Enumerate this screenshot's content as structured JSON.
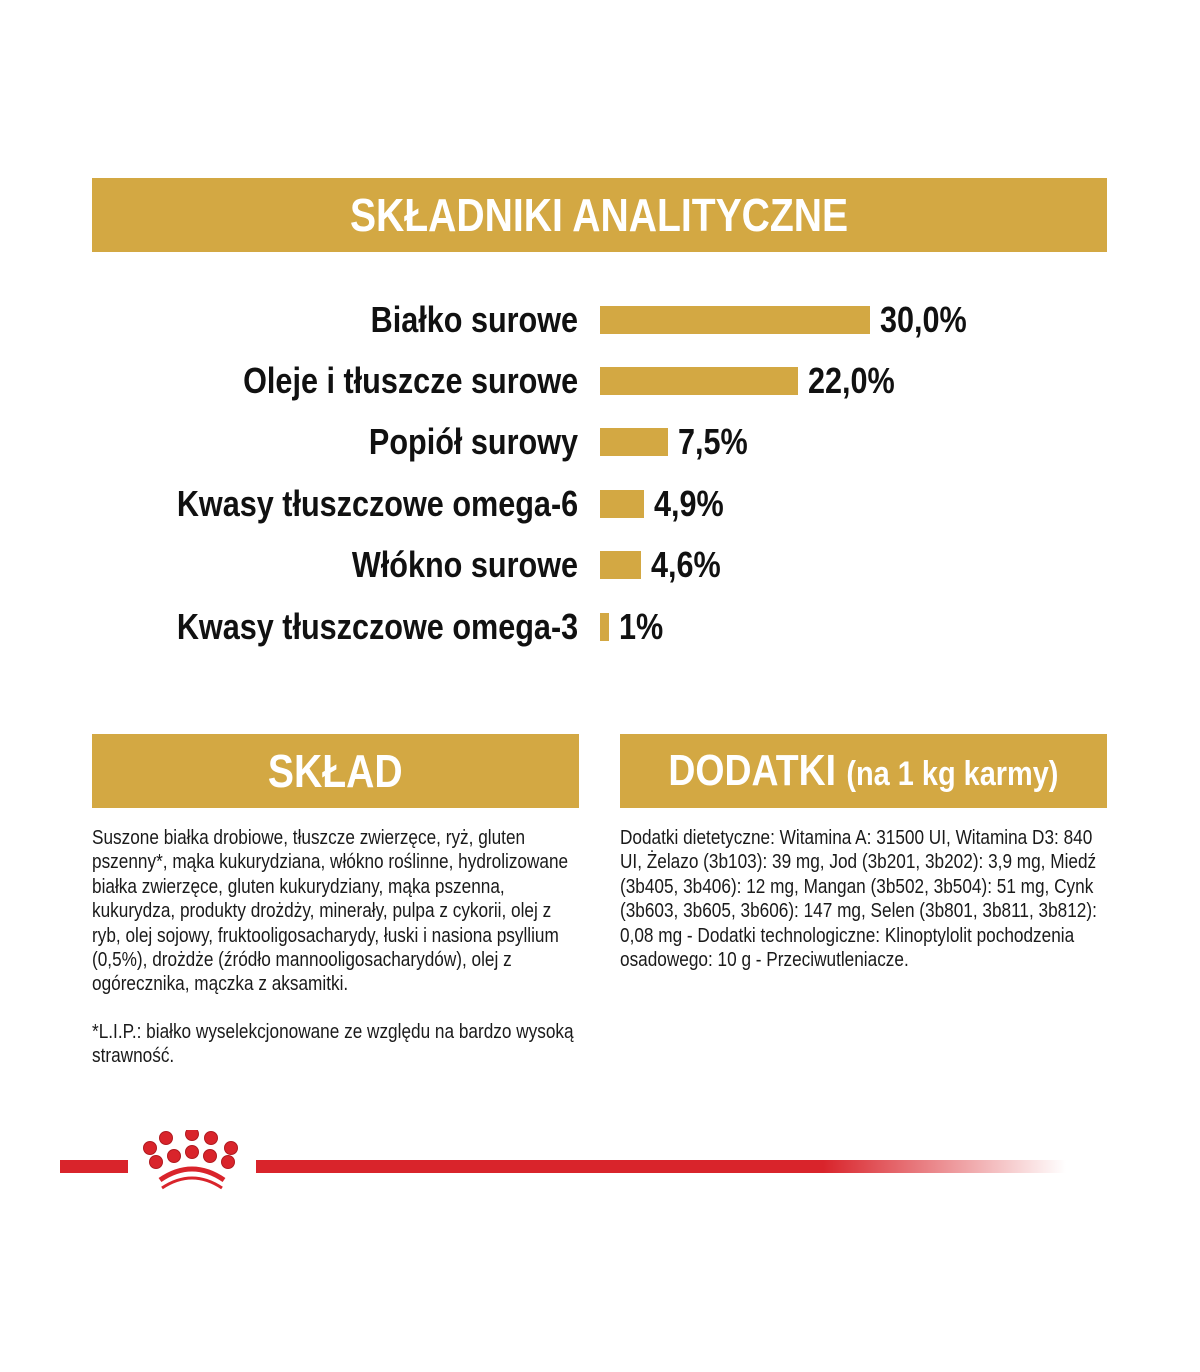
{
  "header": {
    "title": "SKŁADNIKI ANALITYCZNE"
  },
  "chart_data": {
    "type": "bar",
    "orientation": "horizontal",
    "categories": [
      "Białko surowe",
      "Oleje i tłuszcze surowe",
      "Popiół surowy",
      "Kwasy tłuszczowe omega-6",
      "Włókno surowe",
      "Kwasy tłuszczowe omega-3"
    ],
    "values": [
      30.0,
      22.0,
      7.5,
      4.9,
      4.6,
      1
    ],
    "value_labels": [
      "30,0%",
      "22,0%",
      "7,5%",
      "4,9%",
      "4,6%",
      "1%"
    ],
    "unit": "%",
    "grid": false,
    "bar_color": "#d3a843"
  },
  "composition": {
    "title": "SKŁAD",
    "text": "Suszone białka drobiowe, tłuszcze zwierzęce, ryż, gluten pszenny*, mąka kukurydziana, włókno roślinne, hydrolizowane białka zwierzęce, gluten kukurydziany, mąka pszenna, kukurydza, produkty drożdży, minerały, pulpa z cykorii, olej z ryb, olej sojowy, fruktooligosacharydy, łuski i nasiona psyllium (0,5%), drożdże (źródło mannooligosacharydów), olej z ogórecznika, mączka z aksamitki.",
    "note": "*L.I.P.: białko wyselekcjonowane ze względu na bardzo wysoką strawność."
  },
  "additives": {
    "title": "DODATKI",
    "subtitle": "(na 1 kg karmy)",
    "text": "Dodatki dietetyczne: Witamina A: 31500 UI, Witamina D3: 840 UI, Żelazo (3b103): 39 mg, Jod (3b201, 3b202): 3,9 mg, Miedź (3b405, 3b406): 12 mg, Mangan (3b502, 3b504): 51 mg, Cynk (3b603, 3b605, 3b606): 147 mg, Selen (3b801, 3b811, 3b812): 0,08 mg - Dodatki technologiczne: Klinoptylolit pochodzenia osadowego: 10 g - Przeciwutleniacze."
  },
  "footer": {
    "logo_icon": "royal-canin-crown-icon",
    "line_color": "#d9242b"
  }
}
